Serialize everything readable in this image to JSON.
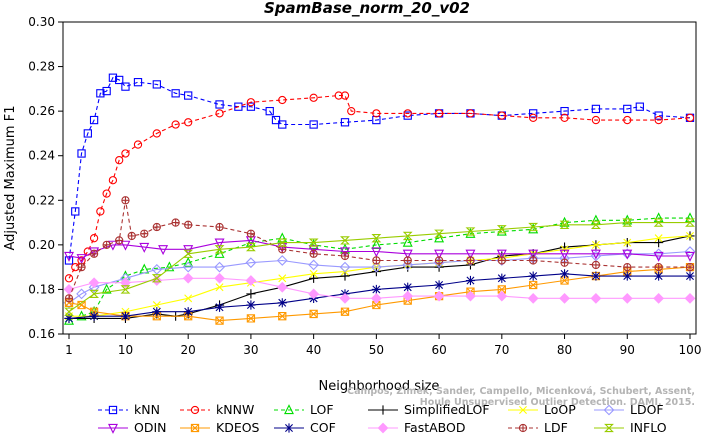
{
  "chart_data": {
    "type": "line",
    "title": "SpamBase_norm_20_v02",
    "xlabel": "Neighborhood size",
    "ylabel": "Adjusted Maximum F1",
    "xlim": [
      1,
      100
    ],
    "ylim": [
      0.16,
      0.3
    ],
    "xticks": [
      1,
      10,
      20,
      30,
      40,
      50,
      60,
      70,
      80,
      90,
      100
    ],
    "yticks": [
      "0.16",
      "0.18",
      "0.20",
      "0.22",
      "0.24",
      "0.26",
      "0.28",
      "0.30"
    ],
    "grid": false,
    "legend_position": "bottom",
    "watermark": "Campos, Zimek, Sander, Campello, Micenková, Schubert, Assent, Houle  Unsupervised Outlier Detection. DAMI, 2015.",
    "series": [
      {
        "name": "kNN",
        "color": "#0000ff",
        "marker": "square",
        "dash": "4,3",
        "points": [
          [
            1,
            0.193
          ],
          [
            2,
            0.215
          ],
          [
            3,
            0.241
          ],
          [
            4,
            0.25
          ],
          [
            5,
            0.256
          ],
          [
            6,
            0.268
          ],
          [
            7,
            0.269
          ],
          [
            8,
            0.275
          ],
          [
            9,
            0.274
          ],
          [
            10,
            0.271
          ],
          [
            12,
            0.273
          ],
          [
            15,
            0.272
          ],
          [
            18,
            0.268
          ],
          [
            20,
            0.267
          ],
          [
            25,
            0.263
          ],
          [
            28,
            0.262
          ],
          [
            30,
            0.262
          ],
          [
            33,
            0.26
          ],
          [
            34,
            0.256
          ],
          [
            35,
            0.254
          ],
          [
            40,
            0.254
          ],
          [
            45,
            0.255
          ],
          [
            50,
            0.256
          ],
          [
            55,
            0.258
          ],
          [
            60,
            0.259
          ],
          [
            65,
            0.259
          ],
          [
            70,
            0.258
          ],
          [
            75,
            0.259
          ],
          [
            80,
            0.26
          ],
          [
            85,
            0.261
          ],
          [
            90,
            0.261
          ],
          [
            92,
            0.262
          ],
          [
            95,
            0.258
          ],
          [
            100,
            0.257
          ]
        ]
      },
      {
        "name": "kNNW",
        "color": "#ff0000",
        "marker": "circle",
        "dash": "4,3",
        "points": [
          [
            1,
            0.185
          ],
          [
            2,
            0.19
          ],
          [
            3,
            0.193
          ],
          [
            4,
            0.197
          ],
          [
            5,
            0.203
          ],
          [
            6,
            0.215
          ],
          [
            7,
            0.223
          ],
          [
            8,
            0.229
          ],
          [
            9,
            0.238
          ],
          [
            10,
            0.241
          ],
          [
            12,
            0.245
          ],
          [
            15,
            0.25
          ],
          [
            18,
            0.254
          ],
          [
            20,
            0.255
          ],
          [
            25,
            0.259
          ],
          [
            30,
            0.264
          ],
          [
            35,
            0.265
          ],
          [
            40,
            0.266
          ],
          [
            44,
            0.267
          ],
          [
            45,
            0.267
          ],
          [
            46,
            0.26
          ],
          [
            50,
            0.259
          ],
          [
            55,
            0.259
          ],
          [
            60,
            0.259
          ],
          [
            65,
            0.259
          ],
          [
            70,
            0.258
          ],
          [
            75,
            0.257
          ],
          [
            80,
            0.257
          ],
          [
            85,
            0.256
          ],
          [
            90,
            0.256
          ],
          [
            95,
            0.256
          ],
          [
            100,
            0.257
          ]
        ]
      },
      {
        "name": "LOF",
        "color": "#00dd00",
        "marker": "triangle-up",
        "dash": "4,3",
        "points": [
          [
            1,
            0.166
          ],
          [
            3,
            0.168
          ],
          [
            5,
            0.17
          ],
          [
            7,
            0.18
          ],
          [
            10,
            0.186
          ],
          [
            13,
            0.189
          ],
          [
            17,
            0.19
          ],
          [
            20,
            0.192
          ],
          [
            25,
            0.196
          ],
          [
            30,
            0.201
          ],
          [
            35,
            0.203
          ],
          [
            40,
            0.2
          ],
          [
            45,
            0.198
          ],
          [
            50,
            0.2
          ],
          [
            55,
            0.201
          ],
          [
            60,
            0.203
          ],
          [
            65,
            0.205
          ],
          [
            70,
            0.206
          ],
          [
            75,
            0.207
          ],
          [
            80,
            0.21
          ],
          [
            85,
            0.211
          ],
          [
            90,
            0.211
          ],
          [
            95,
            0.212
          ],
          [
            100,
            0.212
          ]
        ]
      },
      {
        "name": "SimplifiedLOF",
        "color": "#000000",
        "marker": "plus",
        "dash": "",
        "points": [
          [
            1,
            0.167
          ],
          [
            5,
            0.167
          ],
          [
            10,
            0.167
          ],
          [
            15,
            0.169
          ],
          [
            18,
            0.168
          ],
          [
            20,
            0.169
          ],
          [
            25,
            0.173
          ],
          [
            30,
            0.178
          ],
          [
            35,
            0.181
          ],
          [
            40,
            0.185
          ],
          [
            45,
            0.186
          ],
          [
            50,
            0.188
          ],
          [
            55,
            0.19
          ],
          [
            60,
            0.19
          ],
          [
            65,
            0.191
          ],
          [
            70,
            0.195
          ],
          [
            75,
            0.196
          ],
          [
            80,
            0.199
          ],
          [
            85,
            0.2
          ],
          [
            90,
            0.201
          ],
          [
            95,
            0.201
          ],
          [
            100,
            0.204
          ]
        ]
      },
      {
        "name": "LoOP",
        "color": "#ffff00",
        "marker": "x",
        "dash": "",
        "points": [
          [
            1,
            0.168
          ],
          [
            5,
            0.168
          ],
          [
            10,
            0.17
          ],
          [
            15,
            0.173
          ],
          [
            20,
            0.176
          ],
          [
            25,
            0.181
          ],
          [
            30,
            0.183
          ],
          [
            35,
            0.185
          ],
          [
            40,
            0.187
          ],
          [
            45,
            0.188
          ],
          [
            50,
            0.19
          ],
          [
            55,
            0.191
          ],
          [
            60,
            0.192
          ],
          [
            65,
            0.193
          ],
          [
            70,
            0.194
          ],
          [
            75,
            0.196
          ],
          [
            80,
            0.198
          ],
          [
            85,
            0.2
          ],
          [
            90,
            0.201
          ],
          [
            95,
            0.203
          ],
          [
            100,
            0.204
          ]
        ]
      },
      {
        "name": "LDOF",
        "color": "#9999ff",
        "marker": "diamond",
        "dash": "",
        "points": [
          [
            1,
            0.174
          ],
          [
            3,
            0.178
          ],
          [
            5,
            0.181
          ],
          [
            10,
            0.185
          ],
          [
            15,
            0.189
          ],
          [
            20,
            0.19
          ],
          [
            25,
            0.19
          ],
          [
            30,
            0.192
          ],
          [
            35,
            0.193
          ],
          [
            40,
            0.191
          ],
          [
            45,
            0.19
          ],
          [
            50,
            0.19
          ],
          [
            55,
            0.191
          ],
          [
            60,
            0.192
          ],
          [
            65,
            0.193
          ],
          [
            70,
            0.193
          ],
          [
            75,
            0.194
          ],
          [
            80,
            0.194
          ],
          [
            85,
            0.195
          ],
          [
            90,
            0.196
          ],
          [
            95,
            0.196
          ],
          [
            100,
            0.197
          ]
        ]
      },
      {
        "name": "ODIN",
        "color": "#aa00dd",
        "marker": "triangle-down",
        "dash": "",
        "points": [
          [
            1,
            0.195
          ],
          [
            3,
            0.194
          ],
          [
            5,
            0.197
          ],
          [
            8,
            0.2
          ],
          [
            10,
            0.2
          ],
          [
            13,
            0.199
          ],
          [
            16,
            0.198
          ],
          [
            20,
            0.198
          ],
          [
            25,
            0.201
          ],
          [
            30,
            0.202
          ],
          [
            35,
            0.199
          ],
          [
            40,
            0.198
          ],
          [
            45,
            0.197
          ],
          [
            50,
            0.197
          ],
          [
            55,
            0.196
          ],
          [
            60,
            0.196
          ],
          [
            65,
            0.196
          ],
          [
            70,
            0.196
          ],
          [
            75,
            0.196
          ],
          [
            80,
            0.196
          ],
          [
            85,
            0.196
          ],
          [
            90,
            0.196
          ],
          [
            95,
            0.195
          ],
          [
            100,
            0.195
          ]
        ]
      },
      {
        "name": "KDEOS",
        "color": "#ff9900",
        "marker": "square-x",
        "dash": "",
        "points": [
          [
            1,
            0.174
          ],
          [
            3,
            0.173
          ],
          [
            5,
            0.17
          ],
          [
            10,
            0.168
          ],
          [
            15,
            0.168
          ],
          [
            20,
            0.168
          ],
          [
            25,
            0.166
          ],
          [
            30,
            0.167
          ],
          [
            35,
            0.168
          ],
          [
            40,
            0.169
          ],
          [
            45,
            0.17
          ],
          [
            50,
            0.173
          ],
          [
            55,
            0.175
          ],
          [
            60,
            0.177
          ],
          [
            65,
            0.179
          ],
          [
            70,
            0.18
          ],
          [
            75,
            0.182
          ],
          [
            80,
            0.184
          ],
          [
            85,
            0.186
          ],
          [
            90,
            0.188
          ],
          [
            95,
            0.189
          ],
          [
            100,
            0.19
          ]
        ]
      },
      {
        "name": "COF",
        "color": "#000088",
        "marker": "asterisk",
        "dash": "",
        "points": [
          [
            1,
            0.167
          ],
          [
            5,
            0.168
          ],
          [
            10,
            0.168
          ],
          [
            15,
            0.17
          ],
          [
            20,
            0.17
          ],
          [
            25,
            0.172
          ],
          [
            30,
            0.173
          ],
          [
            35,
            0.174
          ],
          [
            40,
            0.176
          ],
          [
            45,
            0.178
          ],
          [
            50,
            0.18
          ],
          [
            55,
            0.181
          ],
          [
            60,
            0.182
          ],
          [
            65,
            0.184
          ],
          [
            70,
            0.185
          ],
          [
            75,
            0.186
          ],
          [
            80,
            0.187
          ],
          [
            85,
            0.186
          ],
          [
            90,
            0.186
          ],
          [
            95,
            0.186
          ],
          [
            100,
            0.186
          ]
        ]
      },
      {
        "name": "FastABOD",
        "color": "#ff99ff",
        "marker": "diamond-filled",
        "dash": "",
        "points": [
          [
            1,
            0.18
          ],
          [
            5,
            0.183
          ],
          [
            10,
            0.183
          ],
          [
            15,
            0.184
          ],
          [
            20,
            0.185
          ],
          [
            25,
            0.185
          ],
          [
            30,
            0.184
          ],
          [
            35,
            0.181
          ],
          [
            40,
            0.178
          ],
          [
            45,
            0.176
          ],
          [
            50,
            0.176
          ],
          [
            55,
            0.177
          ],
          [
            60,
            0.177
          ],
          [
            65,
            0.177
          ],
          [
            70,
            0.177
          ],
          [
            75,
            0.176
          ],
          [
            80,
            0.176
          ],
          [
            85,
            0.176
          ],
          [
            90,
            0.176
          ],
          [
            95,
            0.176
          ],
          [
            100,
            0.176
          ]
        ]
      },
      {
        "name": "LDF",
        "color": "#aa3333",
        "marker": "circle-plus",
        "dash": "4,3",
        "points": [
          [
            1,
            0.176
          ],
          [
            3,
            0.19
          ],
          [
            5,
            0.196
          ],
          [
            7,
            0.2
          ],
          [
            9,
            0.202
          ],
          [
            10,
            0.22
          ],
          [
            11,
            0.204
          ],
          [
            13,
            0.205
          ],
          [
            15,
            0.208
          ],
          [
            18,
            0.21
          ],
          [
            20,
            0.209
          ],
          [
            25,
            0.208
          ],
          [
            30,
            0.205
          ],
          [
            35,
            0.198
          ],
          [
            40,
            0.196
          ],
          [
            45,
            0.195
          ],
          [
            50,
            0.193
          ],
          [
            55,
            0.193
          ],
          [
            60,
            0.193
          ],
          [
            65,
            0.193
          ],
          [
            70,
            0.193
          ],
          [
            75,
            0.193
          ],
          [
            80,
            0.192
          ],
          [
            85,
            0.191
          ],
          [
            90,
            0.19
          ],
          [
            95,
            0.19
          ],
          [
            100,
            0.19
          ]
        ]
      },
      {
        "name": "INFLO",
        "color": "#99cc00",
        "marker": "hourglass",
        "dash": "",
        "points": [
          [
            1,
            0.17
          ],
          [
            5,
            0.178
          ],
          [
            10,
            0.18
          ],
          [
            15,
            0.185
          ],
          [
            20,
            0.196
          ],
          [
            25,
            0.198
          ],
          [
            30,
            0.199
          ],
          [
            35,
            0.201
          ],
          [
            40,
            0.201
          ],
          [
            45,
            0.202
          ],
          [
            50,
            0.203
          ],
          [
            55,
            0.204
          ],
          [
            60,
            0.205
          ],
          [
            65,
            0.206
          ],
          [
            70,
            0.207
          ],
          [
            75,
            0.208
          ],
          [
            80,
            0.209
          ],
          [
            85,
            0.209
          ],
          [
            90,
            0.21
          ],
          [
            95,
            0.21
          ],
          [
            100,
            0.21
          ]
        ]
      }
    ]
  },
  "legend_rows": [
    [
      "kNN",
      "kNNW",
      "LOF",
      "SimplifiedLOF",
      "LoOP",
      "LDOF"
    ],
    [
      "ODIN",
      "KDEOS",
      "COF",
      "FastABOD",
      "LDF",
      "INFLO"
    ]
  ]
}
